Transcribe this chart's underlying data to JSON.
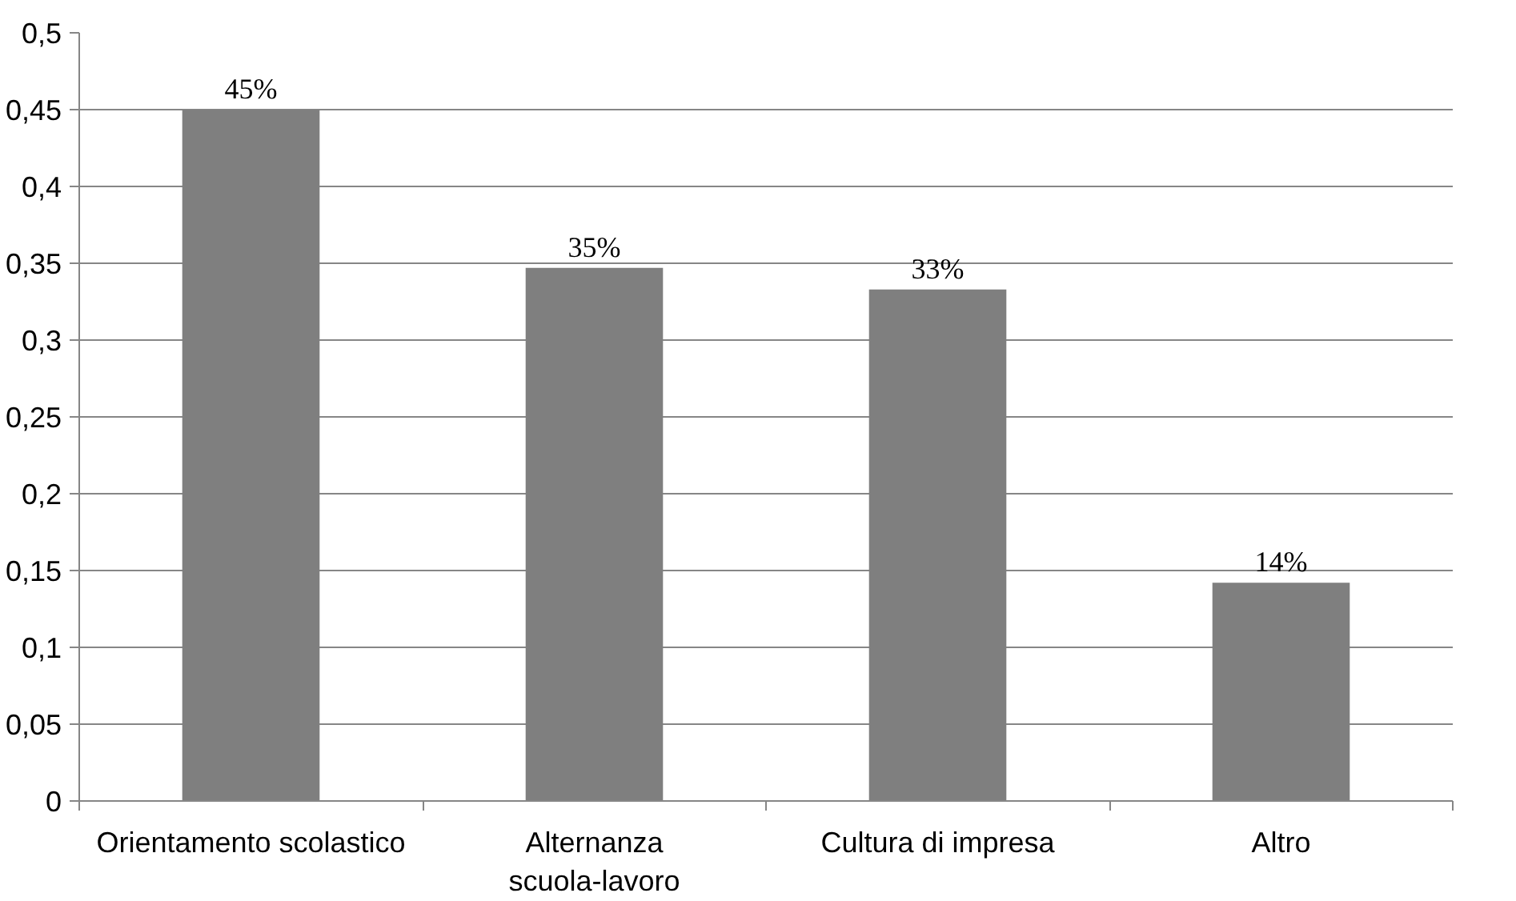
{
  "chart_data": {
    "type": "bar",
    "categories": [
      "Orientamento scolastico",
      "Alternanza\nscuola-lavoro",
      "Cultura di impresa",
      "Altro"
    ],
    "values": [
      0.45,
      0.347,
      0.333,
      0.142
    ],
    "value_labels": [
      "45%",
      "35%",
      "33%",
      "14%"
    ],
    "color": "#7f7f7f",
    "ylim": [
      0,
      0.5
    ],
    "yticks": [
      0,
      {
        "value": 0.05,
        "label": "0,05"
      },
      {
        "value": 0.1,
        "label": "0,1"
      },
      {
        "value": 0.15,
        "label": "0,15"
      },
      {
        "value": 0.2,
        "label": "0,2"
      },
      {
        "value": 0.25,
        "label": "0,25"
      },
      {
        "value": 0.3,
        "label": "0,3"
      },
      {
        "value": 0.35,
        "label": "0,35"
      },
      {
        "value": 0.4,
        "label": "0,4"
      },
      {
        "value": 0.45,
        "label": "0,45"
      },
      {
        "value": 0.5,
        "label": "0,5"
      }
    ],
    "grid": "y"
  }
}
